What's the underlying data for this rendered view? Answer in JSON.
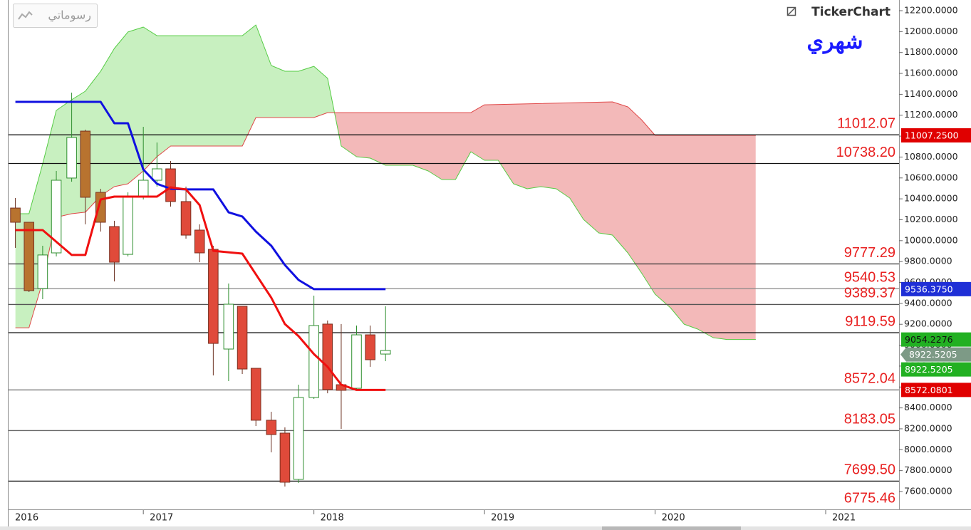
{
  "toolbar": {
    "button": "رسوماتي",
    "logo": "TickerChart"
  },
  "chart_data": {
    "type": "candlestick",
    "title": "شهري",
    "xlim": [
      2016.21,
      2021.43
    ],
    "xticks": [
      2016,
      2017,
      2018,
      2019,
      2020,
      2021
    ],
    "ylim": [
      7600,
      12200
    ],
    "yticks": [
      {
        "value": 12200,
        "label": "12200.0000"
      },
      {
        "value": 12000,
        "label": "12000.0000"
      },
      {
        "value": 11800,
        "label": "11800.0000"
      },
      {
        "value": 11600,
        "label": "11600.0000"
      },
      {
        "value": 11400,
        "label": "11400.0000"
      },
      {
        "value": 11200,
        "label": "11200.0000"
      },
      {
        "value": 11000,
        "label": "11000.0000"
      },
      {
        "value": 10800,
        "label": "10800.0000"
      },
      {
        "value": 10600,
        "label": "10600.0000"
      },
      {
        "value": 10400,
        "label": "10400.0000"
      },
      {
        "value": 10200,
        "label": "10200.0000"
      },
      {
        "value": 10000,
        "label": "10000.0000"
      },
      {
        "value": 9800,
        "label": "9800.0000"
      },
      {
        "value": 9600,
        "label": "9600.0000"
      },
      {
        "value": 9400,
        "label": "9400.0000"
      },
      {
        "value": 9200,
        "label": "9200.0000"
      },
      {
        "value": 9000,
        "label": "9000.0000"
      },
      {
        "value": 8800,
        "label": "8800.0000"
      },
      {
        "value": 8600,
        "label": "8600.0000"
      },
      {
        "value": 8400,
        "label": "8400.0000"
      },
      {
        "value": 8200,
        "label": "8200.0000"
      },
      {
        "value": 8000,
        "label": "8000.0000"
      },
      {
        "value": 7800,
        "label": "7800.0000"
      },
      {
        "value": 7600,
        "label": "7600.0000"
      }
    ],
    "candles": {
      "x": [
        2016.25,
        2016.33,
        2016.41,
        2016.49,
        2016.58,
        2016.66,
        2016.75,
        2016.83,
        2016.91,
        2017.0,
        2017.08,
        2017.16,
        2017.25,
        2017.33,
        2017.41,
        2017.5,
        2017.58,
        2017.66,
        2017.75,
        2017.83,
        2017.91,
        2018.0,
        2018.08,
        2018.16,
        2018.25,
        2018.33,
        2018.42
      ],
      "open": [
        10312,
        10176,
        9542,
        9883,
        10599,
        11048,
        10462,
        10135,
        9869,
        10415,
        10578,
        10687,
        10374,
        10101,
        9917,
        8963,
        9372,
        8779,
        8282,
        8159,
        7716,
        8500,
        9202,
        8622,
        8588,
        9099,
        8915
      ],
      "high": [
        10408,
        10176,
        9951,
        10667,
        11416,
        11062,
        10496,
        10190,
        10462,
        11089,
        10939,
        10762,
        10517,
        10156,
        9951,
        9590,
        9372,
        8779,
        8363,
        8214,
        8622,
        9474,
        9236,
        9202,
        9188,
        9188,
        9372
      ],
      "low": [
        9931,
        9508,
        9440,
        9849,
        10564,
        10156,
        10087,
        9610,
        9849,
        10394,
        10517,
        10326,
        10019,
        9794,
        8711,
        8656,
        8724,
        8227,
        7975,
        7648,
        7682,
        8486,
        8540,
        8200,
        8568,
        8793,
        8847
      ],
      "close": [
        10176,
        9522,
        9863,
        10578,
        10987,
        10415,
        10176,
        9794,
        10415,
        10578,
        10687,
        10374,
        10053,
        9883,
        9017,
        9392,
        8772,
        8282,
        8145,
        7689,
        8500,
        9188,
        8575,
        8568,
        9099,
        8861,
        8950
      ],
      "colors": [
        "#b8732f",
        "#b8732f",
        "#2f8f2f",
        "#2f8f2f",
        "#2f8f2f",
        "#b8732f",
        "#b8732f",
        "#e04a3a",
        "#2f8f2f",
        "#2f8f2f",
        "#2f8f2f",
        "#e04a3a",
        "#e04a3a",
        "#e04a3a",
        "#e04a3a",
        "#2f8f2f",
        "#e04a3a",
        "#e04a3a",
        "#e04a3a",
        "#e04a3a",
        "#2f8f2f",
        "#2f8f2f",
        "#e04a3a",
        "#e04a3a",
        "#2f8f2f",
        "#e04a3a",
        "#2f8f2f"
      ]
    },
    "cloud": {
      "up_color": "#c8f0c0",
      "down_color": "#f3b9b9"
    },
    "series": [
      {
        "type": "line",
        "color": "#1010e0",
        "width": 3,
        "x": [
          2016.25,
          2016.75,
          2016.83,
          2016.91,
          2017.0,
          2017.08,
          2017.16,
          2017.25,
          2017.41,
          2017.5,
          2017.58,
          2017.66,
          2017.75,
          2017.83,
          2017.91,
          2018.0,
          2018.42
        ],
        "values": [
          11328,
          11328,
          11123,
          11123,
          10680,
          10544,
          10496,
          10490,
          10490,
          10271,
          10231,
          10087,
          9951,
          9767,
          9624,
          9536.375,
          9536.375
        ]
      },
      {
        "type": "line",
        "color": "#f01010",
        "width": 3,
        "x": [
          2016.25,
          2016.41,
          2016.58,
          2016.66,
          2016.75,
          2016.83,
          2017.08,
          2017.16,
          2017.25,
          2017.33,
          2017.41,
          2017.58,
          2017.66,
          2017.75,
          2017.83,
          2017.91,
          2018.0,
          2018.08,
          2018.16,
          2018.25,
          2018.42
        ],
        "values": [
          10101,
          10101,
          9863,
          9863,
          10394,
          10421,
          10421,
          10510,
          10490,
          10340,
          9903,
          9876,
          9678,
          9454,
          9202,
          9086,
          8915,
          8793,
          8622,
          8572.08,
          8572.08
        ]
      },
      {
        "type": "span_a",
        "color": "#55cc44",
        "width": 1,
        "x": [
          2016.25,
          2016.33,
          2016.41,
          2016.49,
          2016.58,
          2016.66,
          2016.75,
          2016.83,
          2016.91,
          2017.0,
          2017.08,
          2017.58,
          2017.66,
          2017.75,
          2017.83,
          2017.91,
          2018.0,
          2018.08,
          2018.16,
          2018.25,
          2018.33,
          2018.42,
          2018.58,
          2018.67,
          2018.75,
          2018.83,
          2018.92,
          2019.0,
          2019.08,
          2019.17,
          2019.25,
          2019.33,
          2019.42,
          2019.5,
          2019.58,
          2019.67,
          2019.75,
          2019.84,
          2019.92,
          2020.0,
          2020.09,
          2020.17,
          2020.25,
          2020.34,
          2020.42,
          2020.59
        ],
        "values": [
          10258,
          10258,
          10735,
          11246,
          11348,
          11430,
          11621,
          11839,
          11996,
          12043,
          11961,
          11961,
          12064,
          11675,
          11621,
          11621,
          11668,
          11553,
          10905,
          10803,
          10789,
          10721,
          10721,
          10667,
          10585,
          10585,
          10851,
          10769,
          10769,
          10544,
          10496,
          10517,
          10496,
          10408,
          10203,
          10074,
          10053,
          9883,
          9692,
          9488,
          9358,
          9201,
          9154,
          9072,
          9054.2276,
          9054.2276
        ]
      },
      {
        "type": "span_b",
        "color": "#e04848",
        "width": 1,
        "x": [
          2016.25,
          2016.33,
          2016.41,
          2016.49,
          2016.58,
          2016.66,
          2016.75,
          2016.83,
          2016.91,
          2017.0,
          2017.08,
          2017.16,
          2017.58,
          2017.66,
          2018.0,
          2018.08,
          2018.92,
          2019.0,
          2019.75,
          2019.84,
          2019.92,
          2020.0,
          2020.59
        ],
        "values": [
          9167,
          9167,
          9610,
          10224,
          10258,
          10272,
          10428,
          10517,
          10544,
          10667,
          10803,
          10905,
          10905,
          11178,
          11178,
          11225,
          11225,
          11300,
          11328,
          11280,
          11157,
          11007.25,
          11007.25
        ]
      }
    ],
    "levels": [
      {
        "value": 11012.07,
        "label": "11012.07",
        "color": "#111111"
      },
      {
        "value": 10738.2,
        "label": "10738.20",
        "color": "#111111"
      },
      {
        "value": 9777.29,
        "label": "9777.29",
        "color": "#333333"
      },
      {
        "value": 9540.53,
        "label": "9540.53",
        "color": "#888888"
      },
      {
        "value": 9389.37,
        "label": "9389.37",
        "color": "#555555"
      },
      {
        "value": 9119.59,
        "label": "9119.59",
        "color": "#111111"
      },
      {
        "value": 8572.04,
        "label": "8572.04",
        "color": "#666666"
      },
      {
        "value": 8183.05,
        "label": "8183.05",
        "color": "#666666"
      },
      {
        "value": 7699.5,
        "label": "7699.50",
        "color": "#111111"
      },
      {
        "value": 6775.46,
        "label": "6775.46",
        "color": "#111111"
      }
    ],
    "level_label_color": "#e82020",
    "price_tags": [
      {
        "value": 11007.25,
        "label": "11007.2500",
        "color": "#e00000",
        "text_color": "#ffffff"
      },
      {
        "value": 9536.375,
        "label": "9536.3750",
        "color": "#1f2fd6",
        "text_color": "#ffffff"
      },
      {
        "value": 9054.2276,
        "label": "9054.2276",
        "color": "#22b022",
        "text_color": "#111111"
      },
      {
        "value": 8922.5205,
        "label": "8922.5205",
        "color": "#7d9a86",
        "text_color": "#ffffff",
        "shape": "arrow"
      },
      {
        "value": 8922.5205,
        "label": "8922.5205",
        "color": "#22b022",
        "text_color": "#ffffff"
      },
      {
        "value": 8572.0801,
        "label": "8572.0801",
        "color": "#e00000",
        "text_color": "#ffffff"
      }
    ]
  }
}
